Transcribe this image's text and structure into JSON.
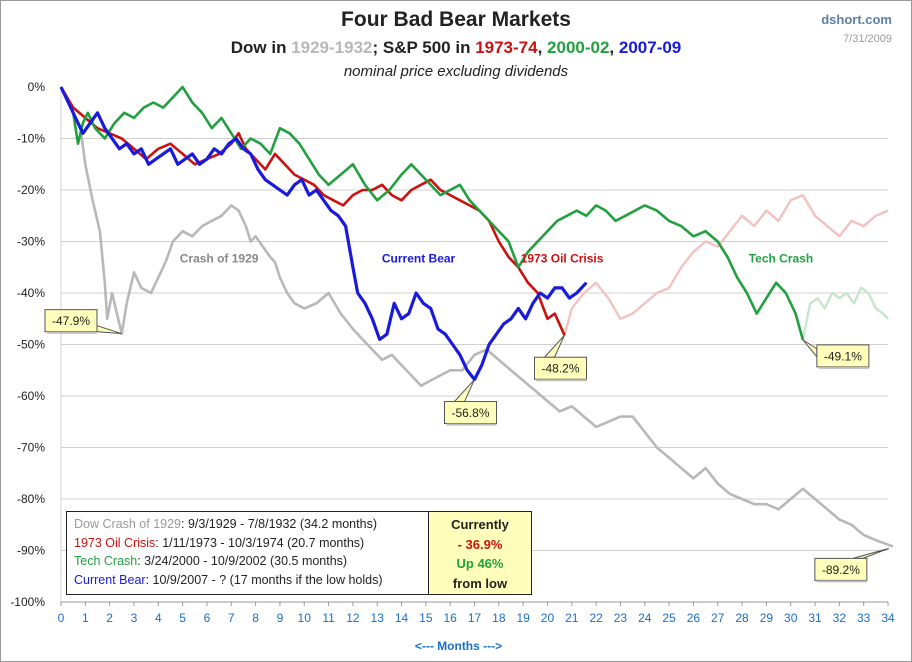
{
  "header": {
    "title": "Four Bad Bear Markets",
    "subtitle_parts": [
      {
        "text": "Dow in ",
        "color": "#222222"
      },
      {
        "text": "1929-1932",
        "color": "#b8b8b8"
      },
      {
        "text": "; S&P 500 in ",
        "color": "#222222"
      },
      {
        "text": "1973-74",
        "color": "#cc1111"
      },
      {
        "text": ", ",
        "color": "#222222"
      },
      {
        "text": "2000-02",
        "color": "#22a040"
      },
      {
        "text": ", ",
        "color": "#222222"
      },
      {
        "text": "2007-09",
        "color": "#1a1adc"
      }
    ],
    "note": "nominal price excluding dividends",
    "source": "dshort.com",
    "date": "7/31/2009"
  },
  "chart_data": {
    "type": "line",
    "xlabel": "<---  Months  --->",
    "ylabel": "",
    "xlim": [
      0,
      34
    ],
    "ylim": [
      -100,
      0
    ],
    "x_ticks": [
      0,
      1,
      2,
      3,
      4,
      5,
      6,
      7,
      8,
      9,
      10,
      11,
      12,
      13,
      14,
      15,
      16,
      17,
      18,
      19,
      20,
      21,
      22,
      23,
      24,
      25,
      26,
      27,
      28,
      29,
      30,
      31,
      32,
      33,
      34
    ],
    "y_ticks": [
      "0%",
      "-10%",
      "-20%",
      "-30%",
      "-40%",
      "-50%",
      "-60%",
      "-70%",
      "-80%",
      "-90%",
      "-100%"
    ],
    "grid": true,
    "series": [
      {
        "name": "Crash of 1929",
        "color": "#b8b8b8",
        "x": [
          0,
          0.4,
          0.8,
          1.0,
          1.3,
          1.6,
          1.8,
          1.9,
          2.1,
          2.3,
          2.5,
          2.7,
          3.0,
          3.3,
          3.7,
          4.0,
          4.3,
          4.6,
          5.0,
          5.4,
          5.8,
          6.2,
          6.6,
          7.0,
          7.3,
          7.6,
          7.8,
          8.0,
          8.3,
          8.6,
          8.8,
          9.0,
          9.3,
          9.6,
          10.0,
          10.5,
          11.0,
          11.5,
          12.0,
          12.4,
          12.8,
          13.2,
          13.6,
          14.0,
          14.4,
          14.8,
          15.2,
          15.6,
          16.0,
          16.5,
          17.0,
          17.5,
          18.0,
          18.5,
          19.0,
          19.5,
          20.0,
          20.5,
          21.0,
          21.5,
          22.0,
          22.5,
          23.0,
          23.5,
          24.0,
          24.5,
          25.0,
          25.5,
          26.0,
          26.5,
          27.0,
          27.5,
          28.0,
          28.5,
          29.0,
          29.5,
          30.0,
          30.5,
          31.0,
          31.5,
          32.0,
          32.5,
          33.0,
          33.5,
          34.2
        ],
        "y": [
          0,
          -4,
          -8,
          -15,
          -22,
          -28,
          -38,
          -45,
          -40,
          -44,
          -47.9,
          -42,
          -36,
          -39,
          -40,
          -37,
          -34,
          -30,
          -28,
          -29,
          -27,
          -26,
          -25,
          -23,
          -24,
          -27,
          -30,
          -29,
          -31,
          -33,
          -34,
          -37,
          -40,
          -42,
          -43,
          -42,
          -40,
          -44,
          -47,
          -49,
          -51,
          -53,
          -52,
          -54,
          -56,
          -58,
          -57,
          -56,
          -55,
          -55,
          -52,
          -51,
          -53,
          -55,
          -57,
          -59,
          -61,
          -63,
          -62,
          -64,
          -66,
          -65,
          -64,
          -64,
          -67,
          -70,
          -72,
          -74,
          -76,
          -74,
          -77,
          -79,
          -80,
          -81,
          -81,
          -82,
          -80,
          -78,
          -80,
          -82,
          -84,
          -85,
          -87,
          -88,
          -89.2
        ]
      },
      {
        "name": "1973 Oil Crisis",
        "color": "#cc1111",
        "x": [
          0,
          0.5,
          1.0,
          1.5,
          2.0,
          2.5,
          3.0,
          3.5,
          4.0,
          4.5,
          5.0,
          5.5,
          6.0,
          6.5,
          7.0,
          7.3,
          7.6,
          8.0,
          8.4,
          8.8,
          9.2,
          9.6,
          10.0,
          10.4,
          10.8,
          11.2,
          11.6,
          12.0,
          12.4,
          12.8,
          13.2,
          13.6,
          14.0,
          14.4,
          14.8,
          15.2,
          15.6,
          16.0,
          16.4,
          16.8,
          17.2,
          17.6,
          18.0,
          18.4,
          18.8,
          19.2,
          19.6,
          20.0,
          20.3,
          20.7
        ],
        "y": [
          0,
          -4,
          -6,
          -8,
          -9,
          -10,
          -12,
          -14,
          -12,
          -11,
          -13,
          -15,
          -14,
          -13,
          -11,
          -9,
          -12,
          -14,
          -16,
          -13,
          -15,
          -17,
          -18,
          -19,
          -21,
          -22,
          -23,
          -21,
          -20,
          -20,
          -19,
          -21,
          -22,
          -20,
          -19,
          -18,
          -20,
          -21,
          -22,
          -23,
          -24,
          -26,
          -30,
          -33,
          -35,
          -38,
          -40,
          -45,
          -44,
          -48.2
        ]
      },
      {
        "name": "Tech Crash",
        "color": "#22a040",
        "x": [
          0,
          0.5,
          0.7,
          0.9,
          1.1,
          1.4,
          1.8,
          2.2,
          2.6,
          3.0,
          3.4,
          3.8,
          4.2,
          4.6,
          5.0,
          5.4,
          5.8,
          6.2,
          6.6,
          7.0,
          7.4,
          7.8,
          8.2,
          8.6,
          9.0,
          9.4,
          9.8,
          10.2,
          10.6,
          11.0,
          11.5,
          12.0,
          12.5,
          13.0,
          13.5,
          14.0,
          14.4,
          14.8,
          15.2,
          15.6,
          16.0,
          16.4,
          16.8,
          17.2,
          17.6,
          18.0,
          18.4,
          18.8,
          19.2,
          19.6,
          20.0,
          20.4,
          20.8,
          21.2,
          21.6,
          22.0,
          22.4,
          22.8,
          23.2,
          23.6,
          24.0,
          24.5,
          25.0,
          25.5,
          26.0,
          26.5,
          27.0,
          27.4,
          27.8,
          28.2,
          28.6,
          29.0,
          29.4,
          29.8,
          30.2,
          30.5
        ],
        "y": [
          0,
          -5,
          -11,
          -7,
          -5,
          -8,
          -10,
          -7,
          -5,
          -6,
          -4,
          -3,
          -4,
          -2,
          0,
          -3,
          -5,
          -8,
          -6,
          -9,
          -12,
          -10,
          -11,
          -13,
          -8,
          -9,
          -11,
          -14,
          -17,
          -19,
          -17,
          -15,
          -19,
          -22,
          -20,
          -17,
          -15,
          -17,
          -19,
          -21,
          -20,
          -19,
          -22,
          -24,
          -26,
          -28,
          -30,
          -35,
          -32,
          -30,
          -28,
          -26,
          -25,
          -24,
          -25,
          -23,
          -24,
          -26,
          -25,
          -24,
          -23,
          -24,
          -26,
          -27,
          -29,
          -28,
          -30,
          -33,
          -37,
          -40,
          -44,
          -41,
          -38,
          -40,
          -44,
          -49.1
        ]
      },
      {
        "name": "Current Bear",
        "color": "#1a1adc",
        "x": [
          0,
          0.3,
          0.6,
          0.9,
          1.2,
          1.5,
          1.8,
          2.1,
          2.4,
          2.7,
          3.0,
          3.3,
          3.6,
          3.9,
          4.2,
          4.5,
          4.8,
          5.1,
          5.4,
          5.7,
          6.0,
          6.3,
          6.6,
          6.9,
          7.2,
          7.5,
          7.8,
          8.1,
          8.4,
          8.7,
          9.0,
          9.3,
          9.6,
          9.9,
          10.2,
          10.5,
          10.8,
          11.1,
          11.4,
          11.7,
          12.0,
          12.2,
          12.5,
          12.8,
          13.1,
          13.4,
          13.7,
          14.0,
          14.3,
          14.6,
          14.9,
          15.2,
          15.5,
          15.8,
          16.1,
          16.4,
          16.7,
          17.0,
          17.3,
          17.6,
          17.9,
          18.2,
          18.5,
          18.8,
          19.1,
          19.4,
          19.7,
          20.0,
          20.3,
          20.6,
          20.9,
          21.2,
          21.6
        ],
        "y": [
          0,
          -3,
          -6,
          -9,
          -7,
          -5,
          -8,
          -10,
          -12,
          -11,
          -13,
          -12,
          -15,
          -14,
          -13,
          -12,
          -15,
          -14,
          -13,
          -15,
          -14,
          -12,
          -13,
          -11,
          -10,
          -12,
          -13,
          -16,
          -18,
          -19,
          -20,
          -21,
          -19,
          -18,
          -21,
          -20,
          -22,
          -24,
          -25,
          -27,
          -35,
          -40,
          -42,
          -45,
          -49,
          -48,
          -42,
          -45,
          -44,
          -40,
          -42,
          -43,
          -47,
          -48,
          -50,
          -52,
          -55,
          -56.8,
          -54,
          -50,
          -48,
          -46,
          -45,
          -43,
          -45,
          -42,
          -40,
          -41,
          -39,
          -39,
          -41,
          -40,
          -38
        ]
      }
    ],
    "faded_extensions": [
      {
        "name": "1973 Oil Crisis continuation",
        "color": "#f2c2c2",
        "x": [
          20.7,
          21.0,
          21.5,
          22.0,
          22.5,
          23.0,
          23.5,
          24.0,
          24.5,
          25.0,
          25.5,
          26.0,
          26.5,
          27.0,
          27.5,
          28.0,
          28.5,
          29.0,
          29.5,
          30.0,
          30.5,
          31.0,
          31.5,
          32.0,
          32.5,
          33.0,
          33.5,
          34.0
        ],
        "y": [
          -48.2,
          -43,
          -40,
          -38,
          -41,
          -45,
          -44,
          -42,
          -40,
          -39,
          -35,
          -32,
          -30,
          -31,
          -28,
          -25,
          -27,
          -24,
          -26,
          -22,
          -21,
          -25,
          -27,
          -29,
          -26,
          -27,
          -25,
          -24
        ]
      },
      {
        "name": "Tech Crash continuation",
        "color": "#c6e6cc",
        "x": [
          30.5,
          30.8,
          31.1,
          31.4,
          31.7,
          32.0,
          32.3,
          32.6,
          32.9,
          33.2,
          33.5,
          33.8,
          34.0
        ],
        "y": [
          -49.1,
          -42,
          -41,
          -43,
          -40,
          -41,
          -40,
          -42,
          -39,
          -40,
          -43,
          -44,
          -45
        ]
      }
    ],
    "series_labels": [
      {
        "text": "Crash of 1929",
        "color": "#888888",
        "x": 6.5,
        "y": -35
      },
      {
        "text": "Current Bear",
        "color": "#1a1adc",
        "x": 14.7,
        "y": -35
      },
      {
        "text": "1973 Oil Crisis",
        "color": "#cc1111",
        "x": 20.6,
        "y": -35
      },
      {
        "text": "Tech Crash",
        "color": "#22a040",
        "x": 29.6,
        "y": -35
      }
    ],
    "callouts": [
      {
        "text": "-47.9%",
        "x": 2.5,
        "y": -47.9,
        "side": "left"
      },
      {
        "text": "-48.2%",
        "x": 20.7,
        "y": -48.2,
        "side": "below"
      },
      {
        "text": "-56.8%",
        "x": 17.0,
        "y": -56.8,
        "side": "below"
      },
      {
        "text": "-49.1%",
        "x": 30.5,
        "y": -49.1,
        "side": "right"
      },
      {
        "text": "-89.2%",
        "x": 34.2,
        "y": -89.2,
        "side": "below-left"
      }
    ]
  },
  "info_box": {
    "rows": [
      {
        "name": "Dow Crash of 1929",
        "detail": ": 9/3/1929  - 7/8/1932  (34.2 months)",
        "color": "#9a9a9a"
      },
      {
        "name": "1973 Oil Crisis",
        "detail": ": 1/11/1973  - 10/3/1974  (20.7 months)",
        "color": "#cc1111"
      },
      {
        "name": "Tech Crash",
        "detail": ":  3/24/2000  - 10/9/2002  (30.5 months)",
        "color": "#22a040"
      },
      {
        "name": "Current Bear",
        "detail": ": 10/9/2007  - ?  (17 months if the low holds)",
        "color": "#1a1adc"
      }
    ],
    "currently": {
      "label": "Currently",
      "change": "- 36.9%",
      "up": "Up 46%",
      "from": "from low",
      "change_color": "#cc1111",
      "up_color": "#22a040"
    }
  }
}
